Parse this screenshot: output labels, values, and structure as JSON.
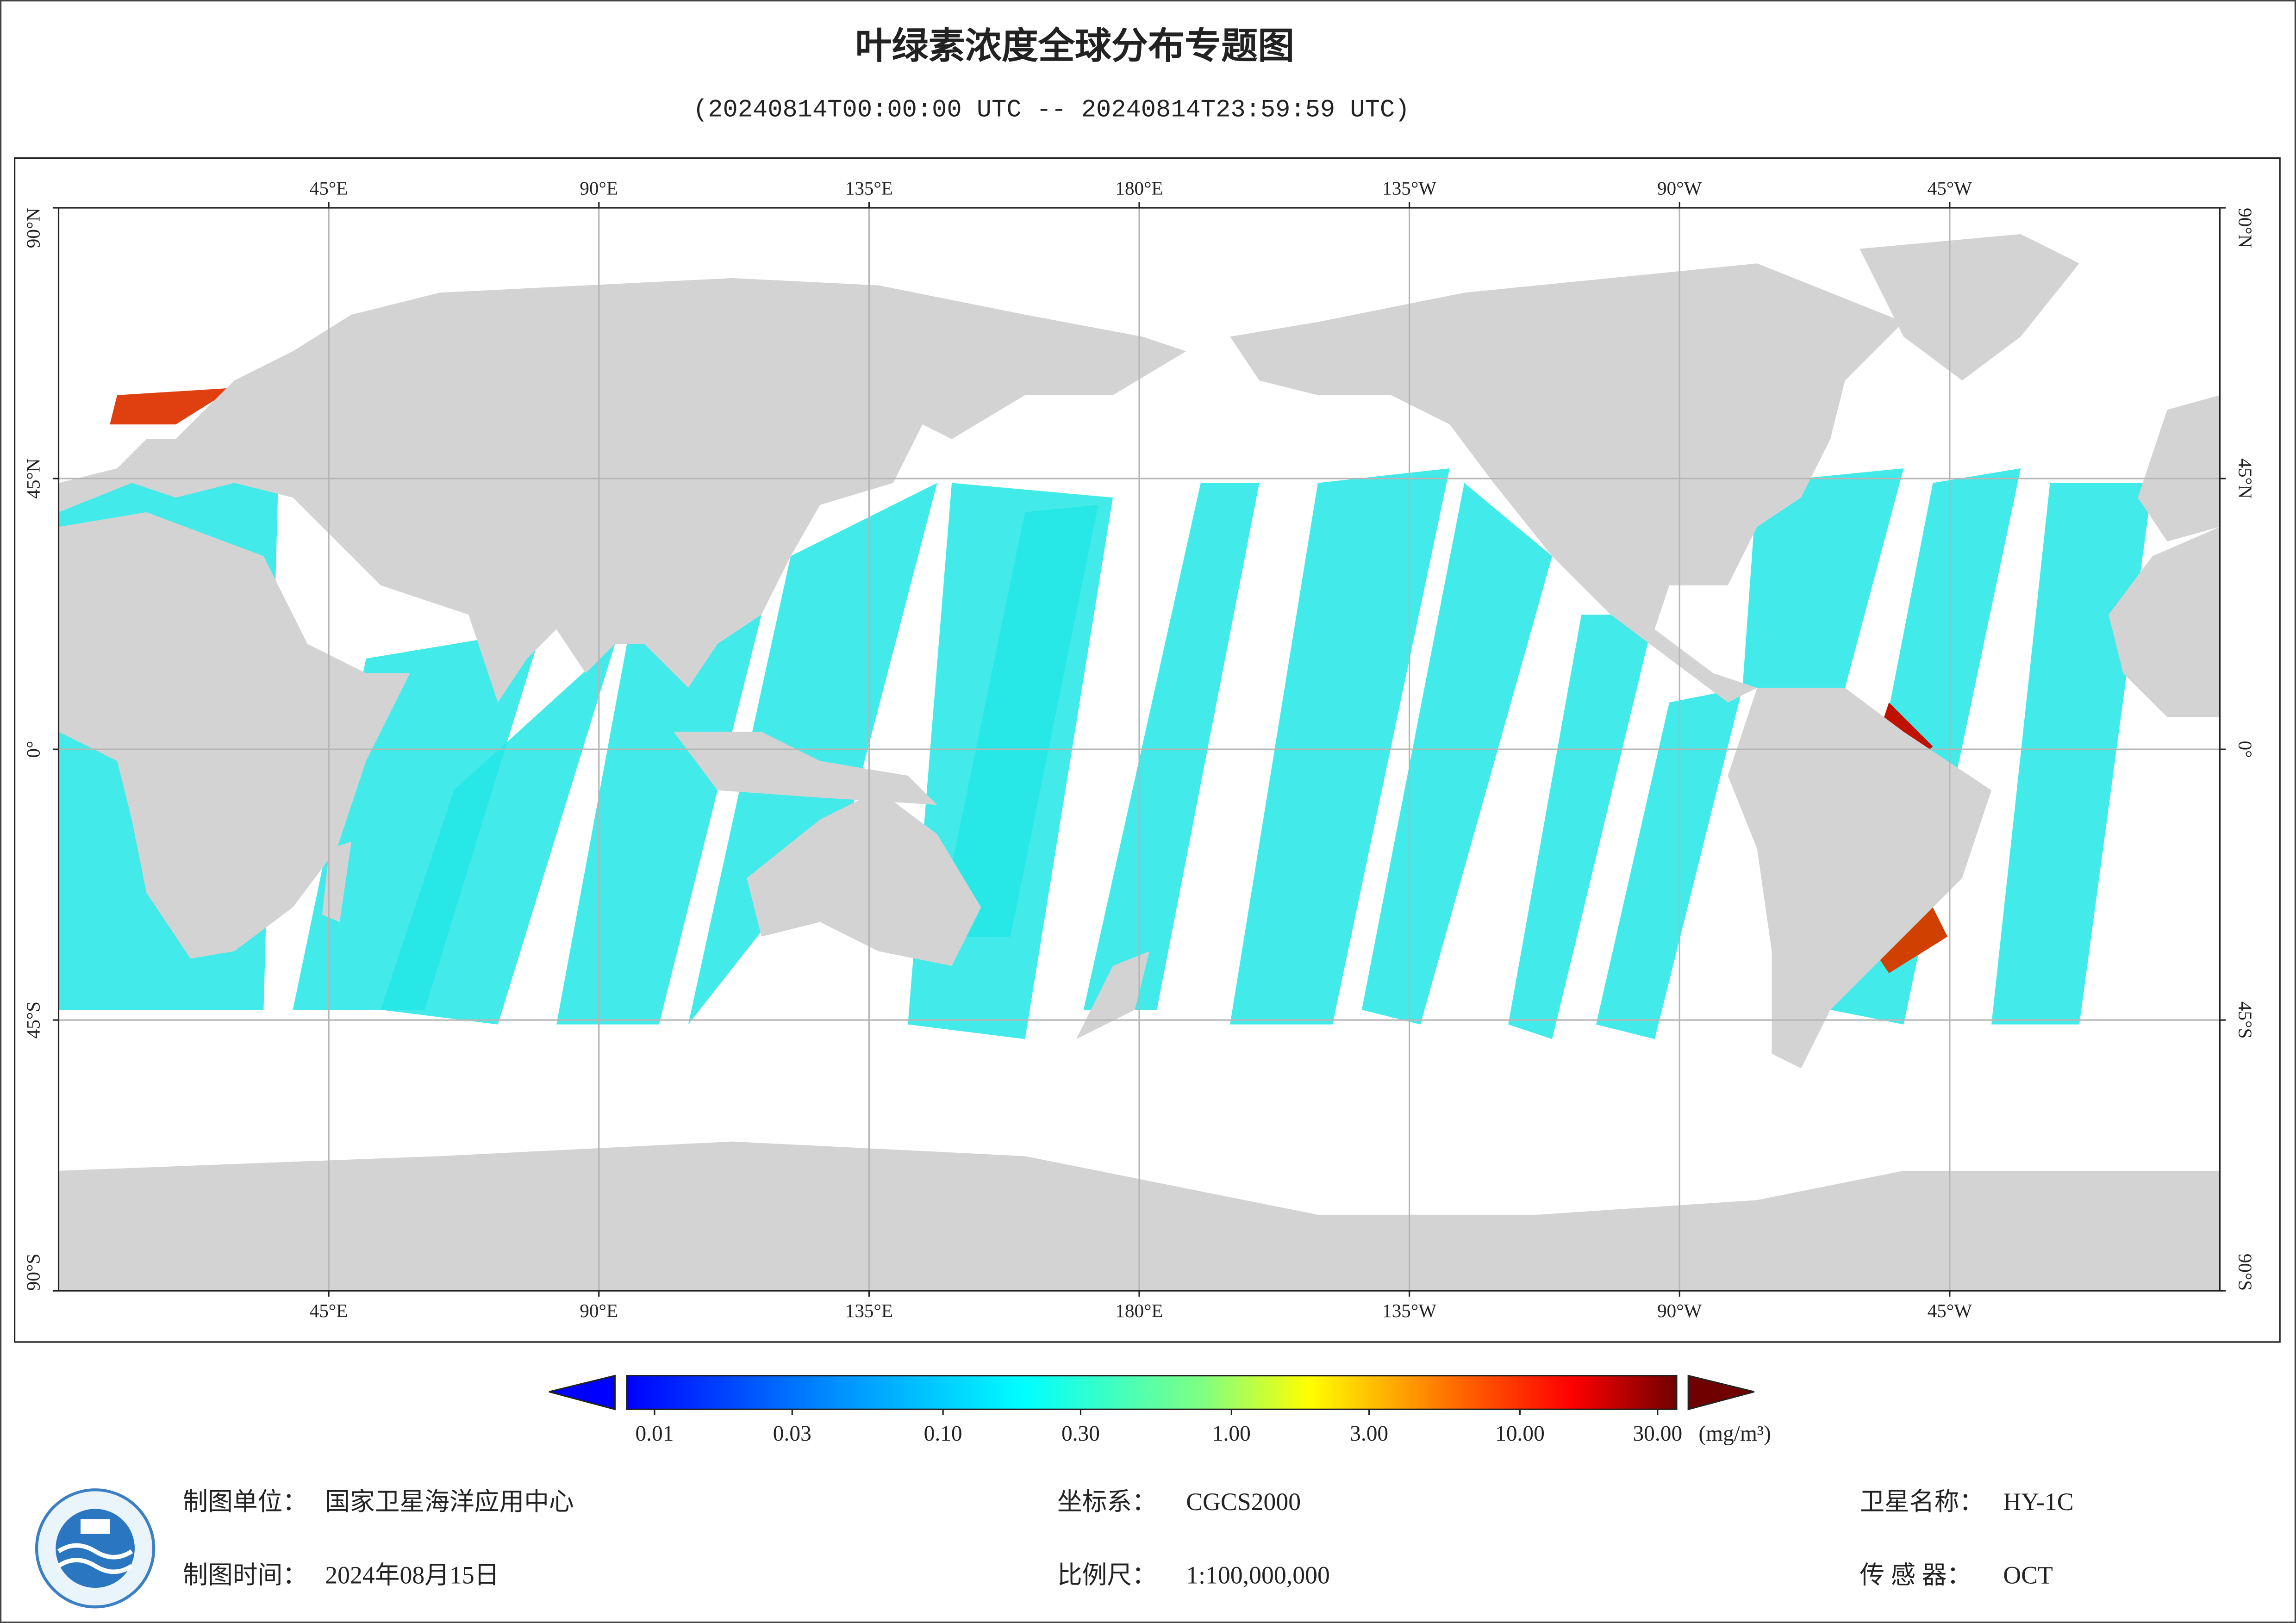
{
  "title": "叶绿素浓度全球分布专题图",
  "subtitle": "(20240814T00:00:00 UTC -- 20240814T23:59:59 UTC)",
  "map": {
    "lon_ticks": [
      {
        "value": 45,
        "label": "45°E"
      },
      {
        "value": 90,
        "label": "90°E"
      },
      {
        "value": 135,
        "label": "135°E"
      },
      {
        "value": 180,
        "label": "180°E"
      },
      {
        "value": -135,
        "label": "135°W"
      },
      {
        "value": -90,
        "label": "90°W"
      },
      {
        "value": -45,
        "label": "45°W"
      }
    ],
    "lat_ticks": [
      {
        "value": 90,
        "label": "90°N"
      },
      {
        "value": 45,
        "label": "45°N"
      },
      {
        "value": 0,
        "label": "0°"
      },
      {
        "value": -45,
        "label": "45°S"
      },
      {
        "value": -90,
        "label": "90°S"
      }
    ]
  },
  "colorbar": {
    "scale": "log",
    "ticks": [
      0.01,
      0.03,
      {
        "value": 0.1,
        "label": "0.10"
      },
      {
        "value": 0.3,
        "label": "0.30"
      },
      {
        "value": 1,
        "label": "1.00"
      },
      {
        "value": 3,
        "label": "3.00"
      },
      {
        "value": 10,
        "label": "10.00"
      },
      {
        "value": 30,
        "label": "30.00"
      }
    ],
    "unit": "(mg/m³)"
  },
  "footer": {
    "unit_label": "制图单位：",
    "unit": "国家卫星海洋应用中心",
    "time_label": "制图时间：",
    "time": "2024年08月15日",
    "crs_label": "坐标系：",
    "crs": "CGCS2000",
    "scale_label": "比例尺：",
    "scale": "1:100,000,000",
    "satellite_label": "卫星名称：",
    "satellite": "HY-1C",
    "sensor_label": "传 感 器：",
    "sensor": "OCT"
  }
}
